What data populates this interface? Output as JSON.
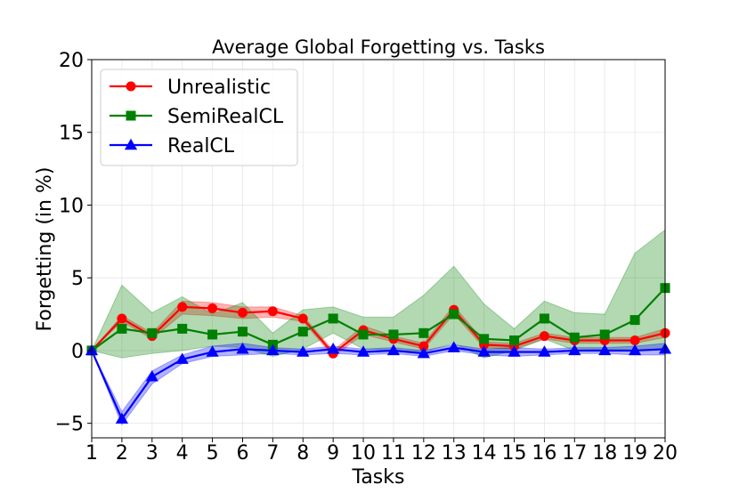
{
  "chart_data": {
    "type": "line",
    "title": "Average Global Forgetting vs. Tasks",
    "xlabel": "Tasks",
    "ylabel": "Forgetting (in %)",
    "x": [
      1,
      2,
      3,
      4,
      5,
      6,
      7,
      8,
      9,
      10,
      11,
      12,
      13,
      14,
      15,
      16,
      17,
      18,
      19,
      20
    ],
    "xlim": [
      1,
      20
    ],
    "ylim": [
      -6,
      20
    ],
    "yticks": [
      -5,
      0,
      5,
      10,
      15,
      20
    ],
    "grid": true,
    "legend_position": "top-left",
    "series": [
      {
        "name": "Unrealistic",
        "color": "#ff0000",
        "marker": "circle",
        "values": [
          0,
          2.2,
          1.0,
          3.0,
          2.9,
          2.6,
          2.7,
          2.2,
          -0.2,
          1.4,
          0.8,
          0.3,
          2.8,
          0.4,
          0.3,
          1.0,
          0.7,
          0.7,
          0.7,
          1.2
        ],
        "lower": [
          0,
          2.0,
          0.8,
          2.5,
          2.4,
          2.2,
          2.3,
          2.0,
          -0.4,
          1.1,
          0.6,
          0.1,
          2.5,
          0.2,
          0.1,
          0.8,
          0.5,
          0.5,
          0.5,
          0.9
        ],
        "upper": [
          0,
          2.4,
          1.2,
          3.4,
          3.3,
          3.0,
          3.0,
          2.4,
          0.0,
          1.7,
          1.0,
          0.5,
          3.1,
          0.6,
          0.5,
          1.2,
          0.9,
          0.9,
          0.9,
          1.5
        ]
      },
      {
        "name": "SemiRealCL",
        "color": "#008000",
        "marker": "square",
        "values": [
          0,
          1.5,
          1.2,
          1.5,
          1.1,
          1.3,
          0.4,
          1.3,
          2.2,
          1.1,
          1.1,
          1.2,
          2.5,
          0.8,
          0.7,
          2.2,
          0.9,
          1.1,
          2.1,
          4.3
        ],
        "lower": [
          0,
          -0.5,
          -0.2,
          0.0,
          0.3,
          0.2,
          -0.4,
          0.1,
          1.2,
          0.1,
          0.0,
          -0.1,
          0.5,
          -0.5,
          0.0,
          0.8,
          0.0,
          0.1,
          0.0,
          0.1
        ],
        "upper": [
          0,
          4.5,
          2.6,
          3.7,
          2.5,
          3.3,
          1.2,
          2.8,
          3.0,
          2.3,
          2.3,
          3.8,
          5.8,
          3.2,
          1.5,
          3.4,
          2.6,
          2.5,
          6.7,
          8.3
        ]
      },
      {
        "name": "RealCL",
        "color": "#0000ff",
        "marker": "triangle",
        "values": [
          0,
          -4.7,
          -1.8,
          -0.6,
          -0.1,
          0.1,
          0.0,
          -0.1,
          0.1,
          -0.1,
          0.0,
          -0.2,
          0.2,
          -0.1,
          -0.1,
          -0.1,
          0.0,
          0.0,
          0.0,
          0.1
        ],
        "lower": [
          0,
          -5.1,
          -2.3,
          -0.9,
          -0.4,
          -0.3,
          -0.2,
          -0.3,
          -0.2,
          -0.3,
          -0.2,
          -0.4,
          0.0,
          -0.3,
          -0.4,
          -0.3,
          -0.2,
          -0.2,
          -0.3,
          -0.3
        ],
        "upper": [
          0,
          -4.2,
          -1.4,
          -0.3,
          0.3,
          0.5,
          0.2,
          0.1,
          0.3,
          0.1,
          0.2,
          0.0,
          0.4,
          0.1,
          0.2,
          0.1,
          0.2,
          0.2,
          0.3,
          0.5
        ]
      }
    ]
  }
}
